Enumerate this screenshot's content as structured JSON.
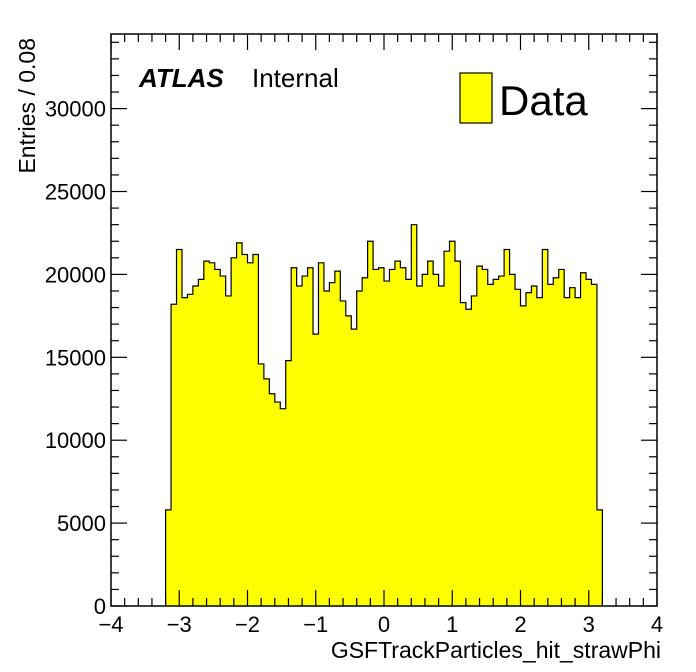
{
  "chart_data": {
    "type": "histogram",
    "xlabel": "GSFTrackParticles_hit_strawPhi",
    "ylabel": "Entries / 0.08",
    "xlim": [
      -4,
      4
    ],
    "ylim": [
      0,
      34500
    ],
    "xticks": [
      -4,
      -3,
      -2,
      -1,
      0,
      1,
      2,
      3,
      4
    ],
    "xtick_labels": [
      "−4",
      "−3",
      "−2",
      "−1",
      "0",
      "1",
      "2",
      "3",
      "4"
    ],
    "yticks": [
      0,
      5000,
      10000,
      15000,
      20000,
      25000,
      30000
    ],
    "ytick_labels": [
      "0",
      "5000",
      "10000",
      "15000",
      "20000",
      "25000",
      "30000"
    ],
    "bin_width": 0.08,
    "bin_edges_start": -3.2,
    "series": [
      {
        "name": "Data",
        "fill_color": "#ffff00",
        "line_color": "#000000",
        "values": [
          5800,
          18200,
          21500,
          18600,
          18800,
          19300,
          19700,
          20800,
          20700,
          20300,
          19900,
          18700,
          21000,
          21900,
          21200,
          20700,
          21200,
          14600,
          13700,
          12800,
          12300,
          11900,
          14800,
          20400,
          19300,
          19900,
          20400,
          16400,
          20700,
          19000,
          19500,
          20200,
          18400,
          17500,
          16700,
          19000,
          19800,
          22000,
          20300,
          20400,
          19600,
          20300,
          20800,
          20400,
          19700,
          23000,
          19300,
          20000,
          20800,
          20000,
          19300,
          21400,
          22000,
          20800,
          18300,
          17900,
          18700,
          20500,
          20300,
          19400,
          19700,
          19900,
          21500,
          20000,
          19100,
          18100,
          18900,
          19300,
          18600,
          21500,
          19400,
          19800,
          20300,
          18600,
          19200,
          18600,
          20100,
          19700,
          19400,
          5800
        ]
      }
    ],
    "legend": {
      "entries": [
        "Data"
      ],
      "placement": "top-right"
    },
    "annotations": {
      "atlas_label": "ATLAS",
      "status_label": "Internal"
    },
    "grid": false
  }
}
